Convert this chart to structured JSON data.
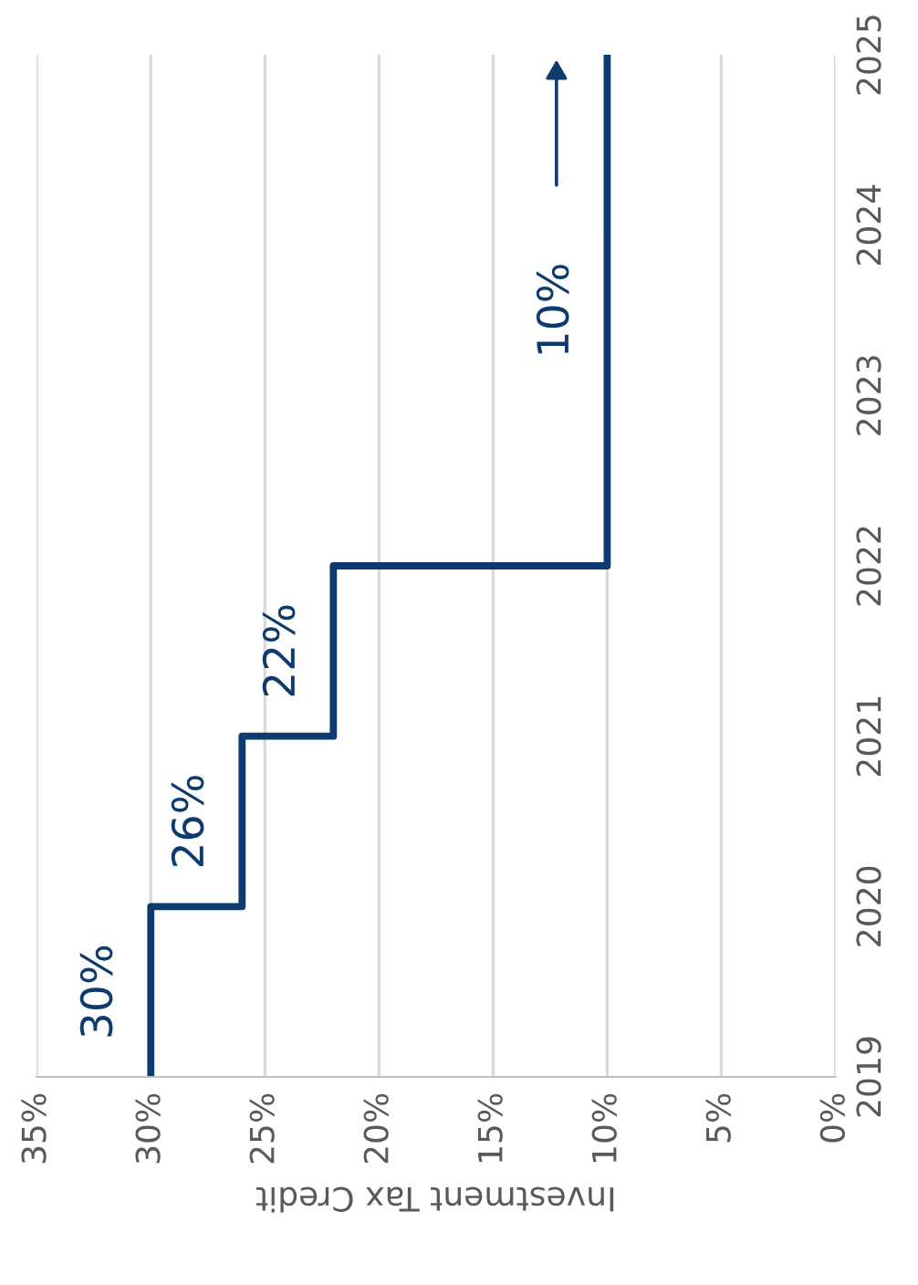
{
  "chart_data": {
    "type": "line",
    "x": [
      30,
      30,
      26,
      26,
      22,
      22,
      10,
      10
    ],
    "values": [
      2019,
      2020,
      2020,
      2021,
      2021,
      2022,
      2022,
      2025
    ],
    "color": "#0d3b6e",
    "annotations": [
      {
        "text": "30%",
        "x": 30,
        "y": 2019.5
      },
      {
        "text": "26%",
        "x": 26,
        "y": 2020.5
      },
      {
        "text": "22%",
        "x": 22,
        "y": 2021.5
      },
      {
        "text": "10%",
        "x": 10,
        "y": 2023.5
      }
    ],
    "xlim": [
      35,
      0
    ],
    "xticks": [
      {
        "value": 35,
        "label": "35%"
      },
      {
        "value": 30,
        "label": "30%"
      },
      {
        "value": 25,
        "label": "25%"
      },
      {
        "value": 20,
        "label": "20%"
      },
      {
        "value": 15,
        "label": "15%"
      },
      {
        "value": 10,
        "label": "10%"
      },
      {
        "value": 5,
        "label": "5%"
      },
      {
        "value": 0,
        "label": "0%"
      }
    ],
    "ylim": [
      2019,
      2025
    ],
    "yticks": [
      2019,
      2020,
      2021,
      2022,
      2023,
      2024,
      2025
    ],
    "xlabel": "Investment Tax Credit",
    "grid": "x"
  }
}
